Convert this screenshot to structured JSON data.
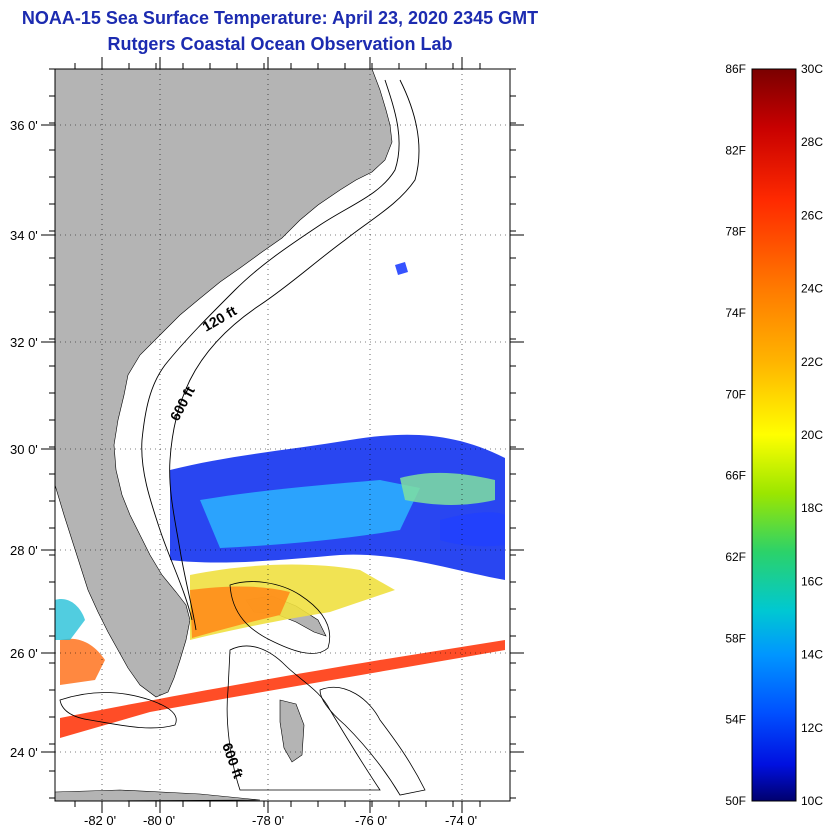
{
  "title": {
    "line1": "NOAA-15 Sea Surface Temperature:  April 23, 2020 2345 GMT",
    "line2": "Rutgers Coastal Ocean Observation Lab"
  },
  "map": {
    "lat_ticks": [
      "36 0'",
      "34 0'",
      "32 0'",
      "30 0'",
      "28 0'",
      "26 0'",
      "24 0'"
    ],
    "lon_ticks": [
      "-82 0'",
      "-80 0'",
      "-78 0'",
      "-76 0'",
      "-74 0'"
    ],
    "contours": [
      "120 ft",
      "600 ft",
      "600 ft"
    ],
    "colors": {
      "land": "#b4b4b4",
      "ocean": "#ffffff",
      "contour": "#000000"
    }
  },
  "colorbar": {
    "fahrenheit": [
      "86F",
      "82F",
      "78F",
      "74F",
      "70F",
      "66F",
      "62F",
      "58F",
      "54F",
      "50F"
    ],
    "celsius": [
      "30C",
      "28C",
      "26C",
      "24C",
      "22C",
      "20C",
      "18C",
      "16C",
      "14C",
      "12C",
      "10C"
    ],
    "gradient": [
      "#7a0000",
      "#c80000",
      "#ff2a00",
      "#ff7a00",
      "#ffb400",
      "#ffff00",
      "#9be600",
      "#2bd26a",
      "#00c8d2",
      "#0096ff",
      "#0050ff",
      "#0010e0",
      "#00006e"
    ]
  }
}
